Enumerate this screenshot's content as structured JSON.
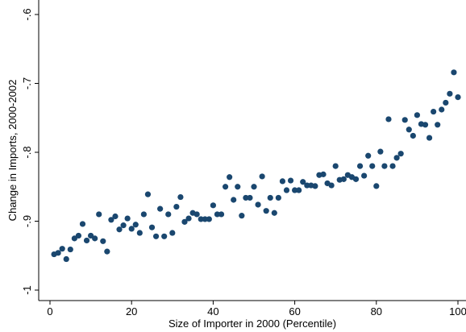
{
  "chart_data": {
    "type": "scatter",
    "title": "",
    "xlabel": "Size of Importer in 2000 (Percentile)",
    "ylabel": "Change in Imports, 2000-2002",
    "xlim": [
      0,
      100
    ],
    "ylim": [
      -1,
      -0.6
    ],
    "x_ticks": [
      0,
      20,
      40,
      60,
      80,
      100
    ],
    "x_tick_labels": [
      "0",
      "20",
      "40",
      "60",
      "80",
      "100"
    ],
    "y_ticks": [
      -1,
      -0.9,
      -0.8,
      -0.7,
      -0.6
    ],
    "y_tick_labels": [
      "-1",
      "-.9",
      "-.8",
      "-.7",
      "-.6"
    ],
    "grid": false,
    "marker_color": "#1a476f",
    "points": [
      [
        1,
        -0.948
      ],
      [
        2,
        -0.946
      ],
      [
        3,
        -0.94
      ],
      [
        4,
        -0.955
      ],
      [
        5,
        -0.941
      ],
      [
        6,
        -0.925
      ],
      [
        7,
        -0.921
      ],
      [
        8,
        -0.904
      ],
      [
        9,
        -0.928
      ],
      [
        10,
        -0.921
      ],
      [
        11,
        -0.925
      ],
      [
        12,
        -0.89
      ],
      [
        13,
        -0.929
      ],
      [
        14,
        -0.944
      ],
      [
        15,
        -0.898
      ],
      [
        16,
        -0.893
      ],
      [
        17,
        -0.912
      ],
      [
        18,
        -0.906
      ],
      [
        19,
        -0.896
      ],
      [
        20,
        -0.911
      ],
      [
        21,
        -0.905
      ],
      [
        22,
        -0.917
      ],
      [
        23,
        -0.89
      ],
      [
        24,
        -0.861
      ],
      [
        25,
        -0.909
      ],
      [
        26,
        -0.922
      ],
      [
        27,
        -0.882
      ],
      [
        28,
        -0.922
      ],
      [
        29,
        -0.89
      ],
      [
        30,
        -0.917
      ],
      [
        31,
        -0.879
      ],
      [
        32,
        -0.865
      ],
      [
        33,
        -0.901
      ],
      [
        34,
        -0.896
      ],
      [
        35,
        -0.888
      ],
      [
        36,
        -0.89
      ],
      [
        37,
        -0.897
      ],
      [
        38,
        -0.897
      ],
      [
        39,
        -0.897
      ],
      [
        40,
        -0.877
      ],
      [
        41,
        -0.89
      ],
      [
        42,
        -0.89
      ],
      [
        43,
        -0.85
      ],
      [
        44,
        -0.836
      ],
      [
        45,
        -0.869
      ],
      [
        46,
        -0.85
      ],
      [
        47,
        -0.892
      ],
      [
        48,
        -0.866
      ],
      [
        49,
        -0.866
      ],
      [
        50,
        -0.85
      ],
      [
        51,
        -0.876
      ],
      [
        52,
        -0.835
      ],
      [
        53,
        -0.885
      ],
      [
        54,
        -0.866
      ],
      [
        55,
        -0.888
      ],
      [
        56,
        -0.866
      ],
      [
        57,
        -0.842
      ],
      [
        58,
        -0.855
      ],
      [
        59,
        -0.841
      ],
      [
        60,
        -0.855
      ],
      [
        61,
        -0.855
      ],
      [
        62,
        -0.843
      ],
      [
        63,
        -0.848
      ],
      [
        64,
        -0.848
      ],
      [
        65,
        -0.849
      ],
      [
        66,
        -0.833
      ],
      [
        67,
        -0.832
      ],
      [
        68,
        -0.845
      ],
      [
        69,
        -0.848
      ],
      [
        70,
        -0.82
      ],
      [
        71,
        -0.84
      ],
      [
        72,
        -0.839
      ],
      [
        73,
        -0.833
      ],
      [
        74,
        -0.836
      ],
      [
        75,
        -0.839
      ],
      [
        76,
        -0.82
      ],
      [
        77,
        -0.834
      ],
      [
        78,
        -0.805
      ],
      [
        79,
        -0.82
      ],
      [
        80,
        -0.849
      ],
      [
        81,
        -0.799
      ],
      [
        82,
        -0.82
      ],
      [
        83,
        -0.752
      ],
      [
        84,
        -0.82
      ],
      [
        85,
        -0.808
      ],
      [
        86,
        -0.802
      ],
      [
        87,
        -0.753
      ],
      [
        88,
        -0.767
      ],
      [
        89,
        -0.776
      ],
      [
        90,
        -0.746
      ],
      [
        91,
        -0.759
      ],
      [
        92,
        -0.76
      ],
      [
        93,
        -0.779
      ],
      [
        94,
        -0.741
      ],
      [
        95,
        -0.76
      ],
      [
        96,
        -0.738
      ],
      [
        97,
        -0.728
      ],
      [
        98,
        -0.715
      ],
      [
        99,
        -0.684
      ],
      [
        100,
        -0.72
      ]
    ]
  }
}
